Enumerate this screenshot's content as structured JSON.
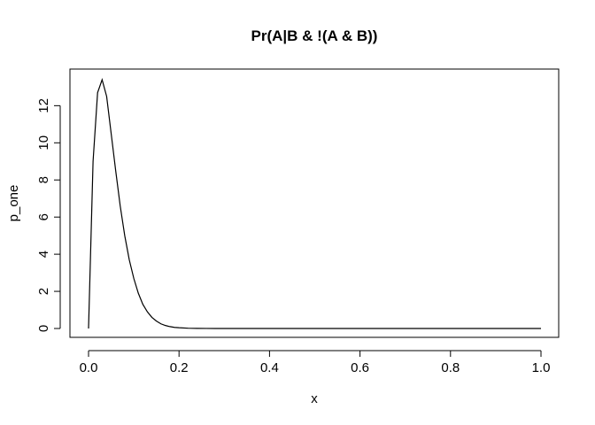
{
  "chart_data": {
    "type": "line",
    "title": "Pr(A|B & !(A & B))",
    "xlabel": "x",
    "ylabel": "p_one",
    "xlim": [
      0,
      1
    ],
    "ylim": [
      0,
      13.4
    ],
    "grid": false,
    "legend": "none",
    "xticks": [
      0.0,
      0.2,
      0.4,
      0.6,
      0.8,
      1.0
    ],
    "xtick_labels": [
      "0.0",
      "0.2",
      "0.4",
      "0.6",
      "0.8",
      "1.0"
    ],
    "yticks": [
      0,
      2,
      4,
      6,
      8,
      10,
      12
    ],
    "ytick_labels": [
      "0",
      "2",
      "4",
      "6",
      "8",
      "10",
      "12"
    ],
    "line_color": "#000000",
    "series": [
      {
        "x": [
          0.0,
          0.01,
          0.02,
          0.03,
          0.04,
          0.05,
          0.06,
          0.07,
          0.08,
          0.09,
          0.1,
          0.11,
          0.12,
          0.13,
          0.14,
          0.15,
          0.16,
          0.17,
          0.18,
          0.19,
          0.2,
          0.22,
          0.24,
          0.26,
          0.28,
          0.3,
          0.35,
          0.4,
          0.5,
          0.6,
          0.7,
          0.8,
          0.9,
          1.0
        ],
        "y": [
          0,
          9.0,
          12.7,
          13.4,
          12.5,
          10.5,
          8.5,
          6.6,
          5.0,
          3.7,
          2.7,
          1.9,
          1.3,
          0.9,
          0.6,
          0.4,
          0.25,
          0.16,
          0.1,
          0.06,
          0.04,
          0.015,
          0.005,
          0.002,
          0.001,
          0,
          0,
          0,
          0,
          0,
          0,
          0,
          0,
          0
        ]
      }
    ]
  }
}
